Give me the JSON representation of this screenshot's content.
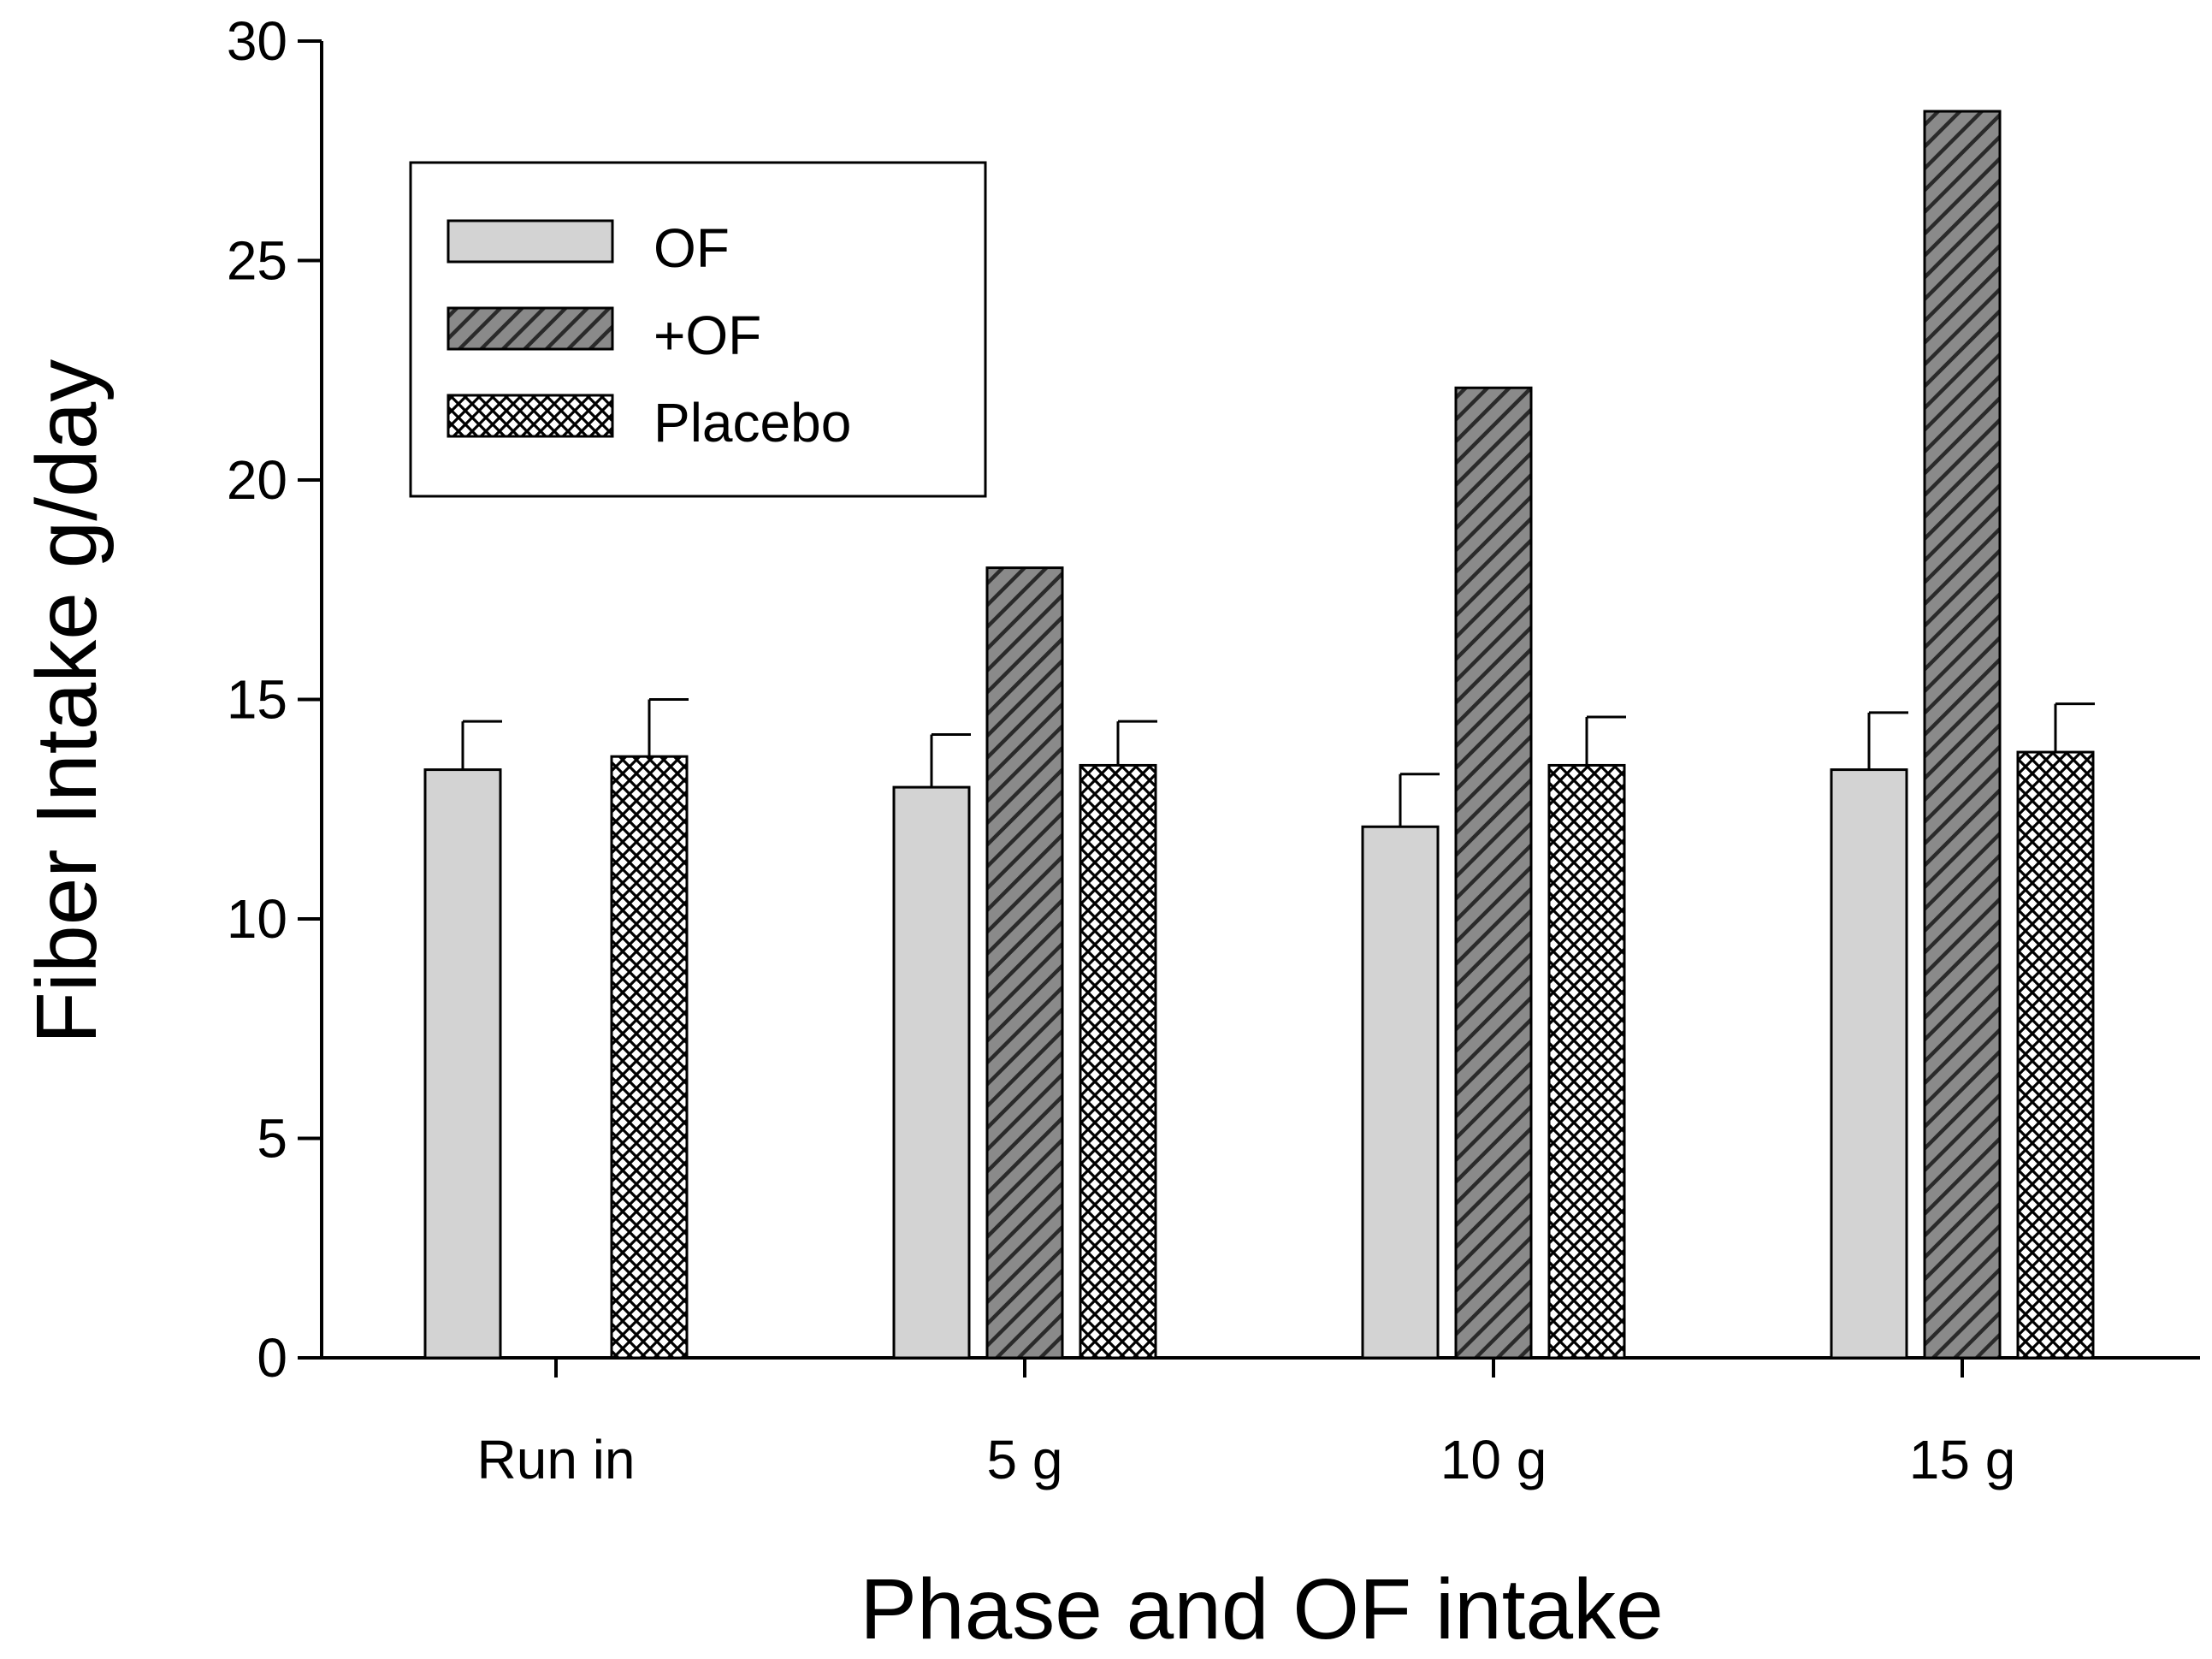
{
  "chart_data": {
    "type": "bar",
    "xlabel": "Phase and OF intake",
    "ylabel": "Fiber Intake g/day",
    "ylim": [
      0,
      30
    ],
    "yticks": [
      0,
      5,
      10,
      15,
      20,
      25,
      30
    ],
    "categories": [
      "Run in",
      "5 g",
      "10 g",
      "15 g"
    ],
    "series": [
      {
        "name": "OF",
        "values": [
          13.4,
          13.0,
          12.1,
          13.4
        ],
        "errors": [
          1.1,
          1.2,
          1.2,
          1.3
        ],
        "fill": "#d3d3d3",
        "pattern": "solid"
      },
      {
        "name": "+OF",
        "values": [
          null,
          18.0,
          22.1,
          28.4
        ],
        "errors": [
          null,
          null,
          null,
          null
        ],
        "fill": "#6e6e6e",
        "pattern": "diagonal-hatch"
      },
      {
        "name": "Placebo",
        "values": [
          13.7,
          13.5,
          13.5,
          13.8
        ],
        "errors": [
          1.3,
          1.0,
          1.1,
          1.1
        ],
        "fill": "#ffffff",
        "pattern": "crosshatch"
      }
    ],
    "legend_position": "top-left",
    "grid": false
  }
}
